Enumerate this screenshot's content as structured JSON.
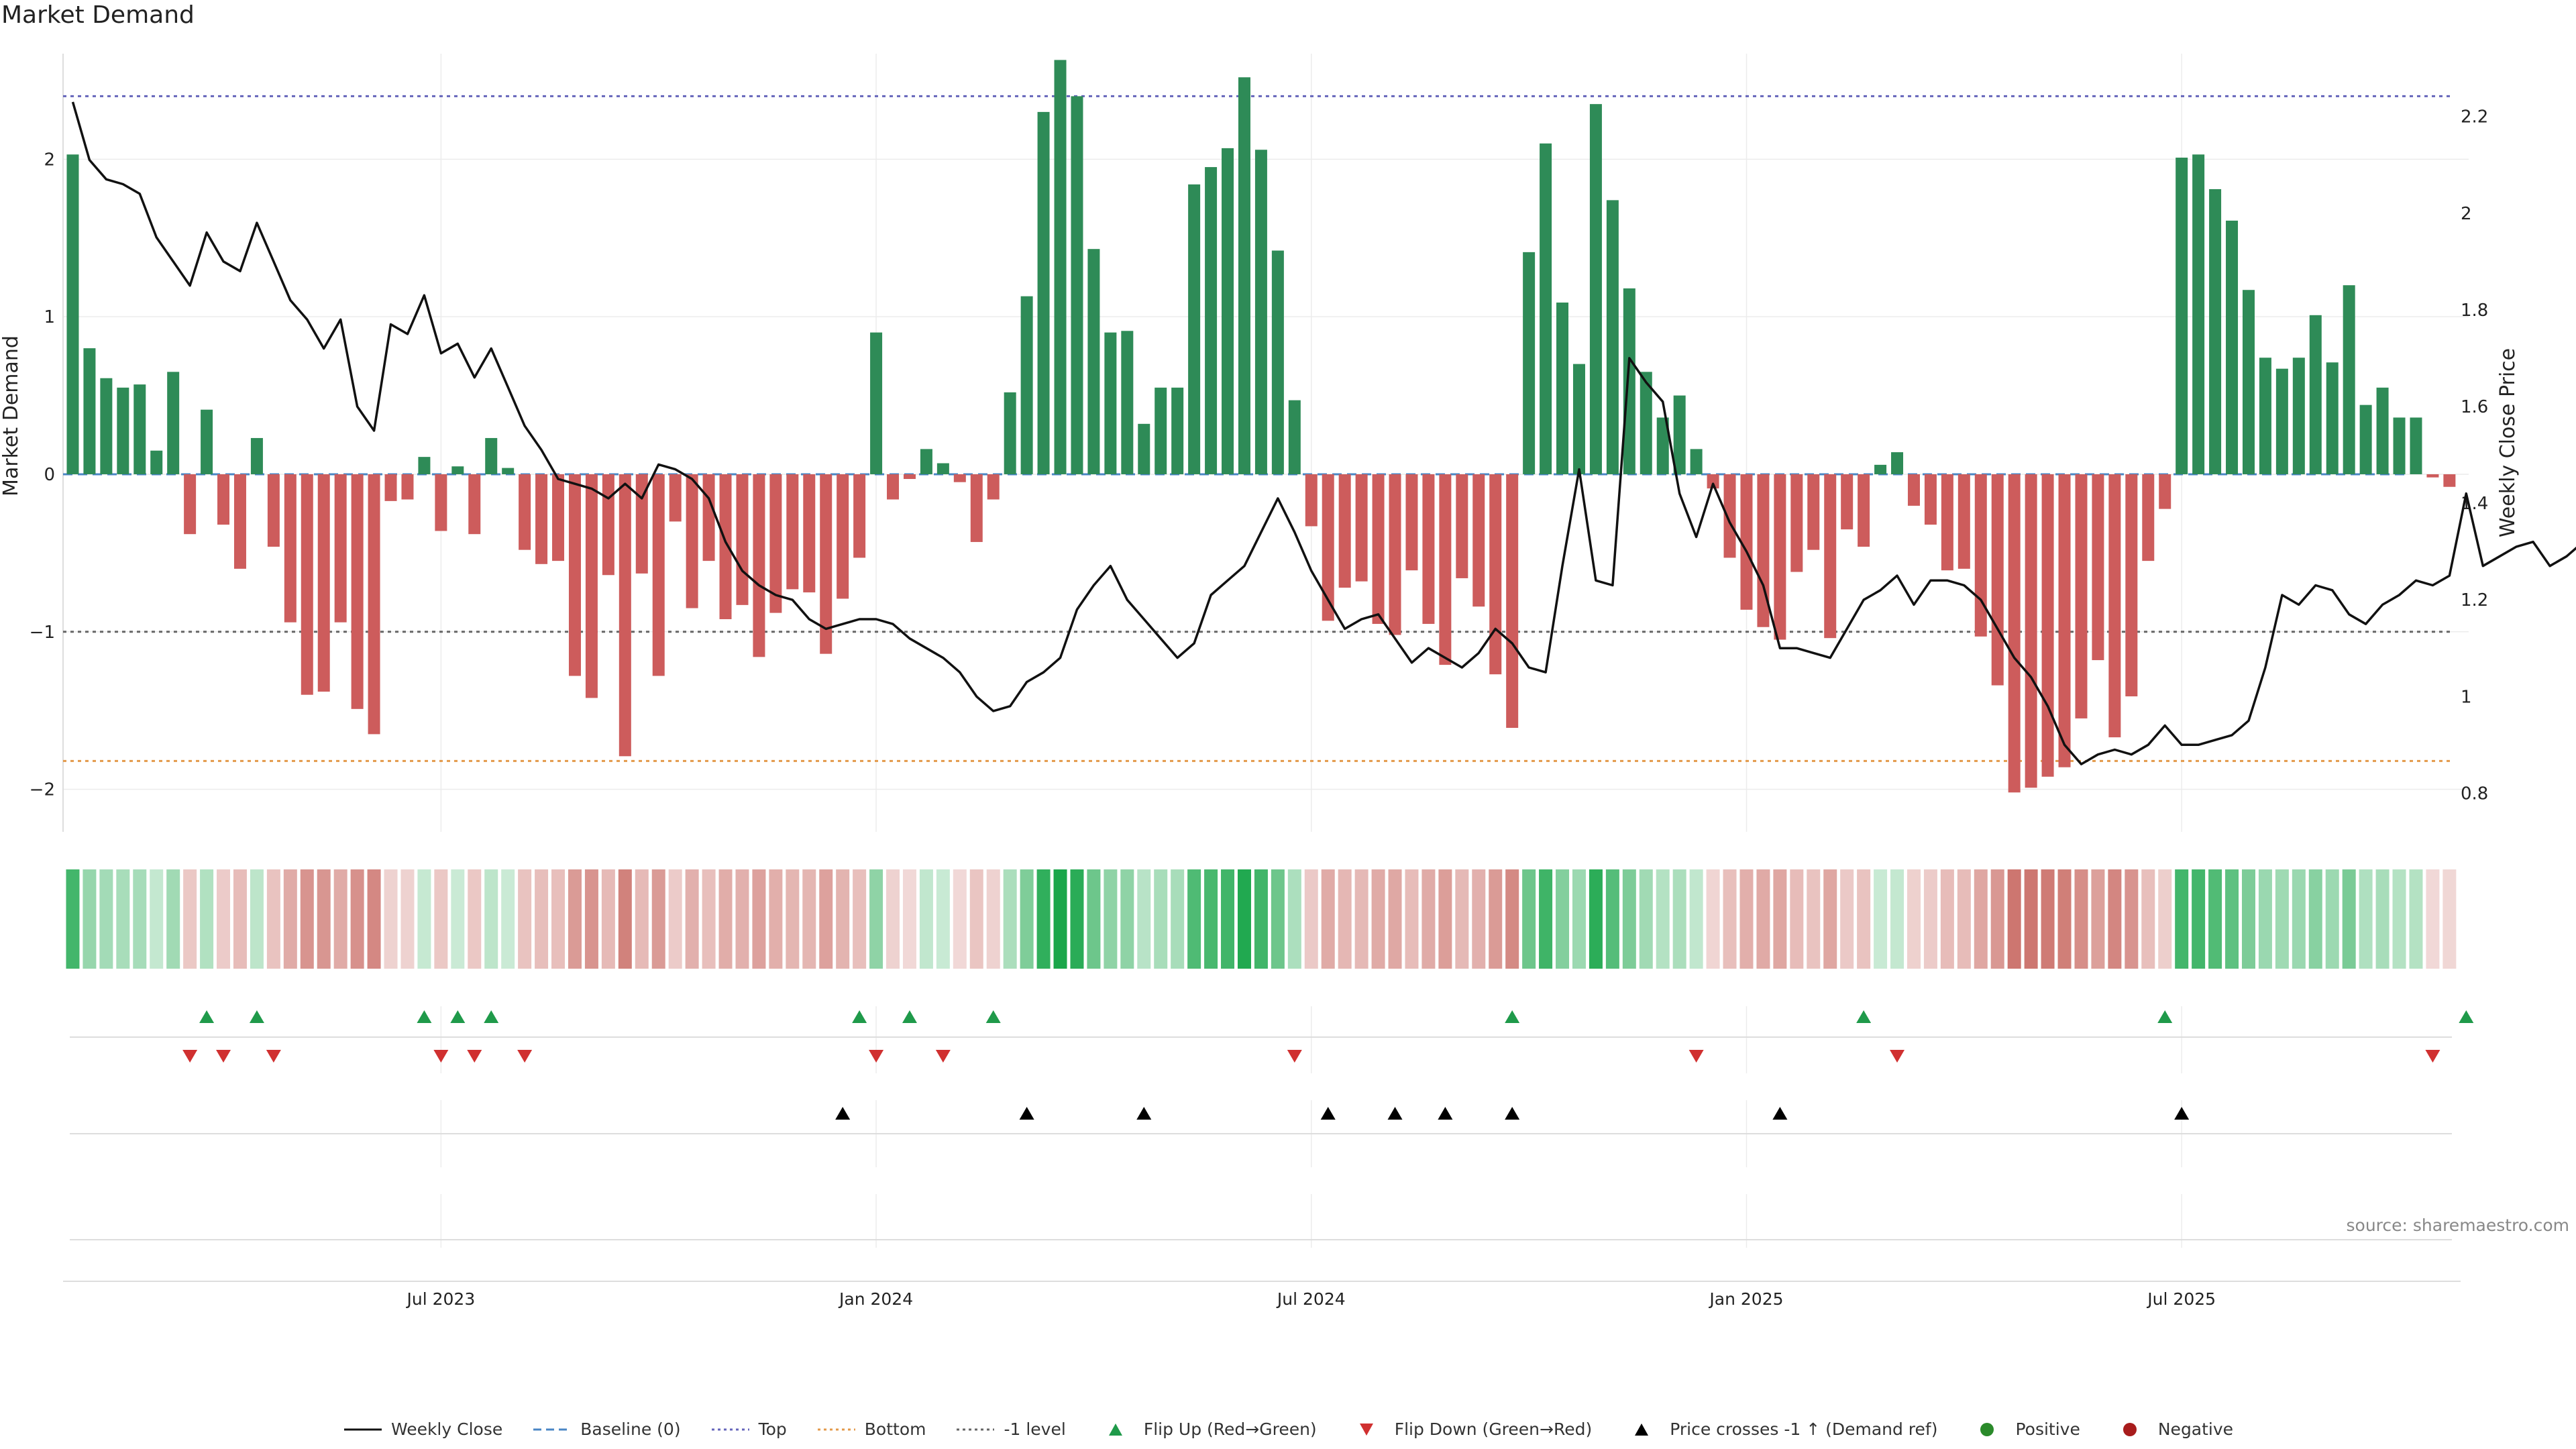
{
  "chart_data": {
    "type": "bar",
    "title": "Market Demand",
    "ylabel": "Market Demand",
    "y2label": "Weekly Close Price",
    "ylim": [
      -2.27,
      2.67
    ],
    "y2lim": [
      0.72,
      2.33
    ],
    "yticks": [
      2,
      1,
      0,
      -1,
      -2
    ],
    "ytick_labels": [
      "2",
      "1",
      "0",
      "−1",
      "−2"
    ],
    "y2ticks": [
      2.2,
      2.0,
      1.8,
      1.6,
      1.4,
      1.2,
      1.0,
      0.8
    ],
    "y2tick_labels": [
      "2.2",
      "2",
      "1.8",
      "1.6",
      "1.4",
      "1.2",
      "1",
      "0.8"
    ],
    "x_ticks": [
      {
        "week": 22,
        "label": "Jul 2023"
      },
      {
        "week": 48,
        "label": "Jan 2024"
      },
      {
        "week": 74,
        "label": "Jul 2024"
      },
      {
        "week": 100,
        "label": "Jan 2025"
      },
      {
        "week": 126,
        "label": "Jul 2025"
      }
    ],
    "reference_lines": [
      {
        "name": "Top",
        "value": 2.4,
        "color": "#6666bb"
      },
      {
        "name": "Bottom",
        "value": -1.82,
        "color": "#e39a4b"
      },
      {
        "name": "-1 level",
        "value": -1.0,
        "color": "#666666"
      },
      {
        "name": "Baseline (0)",
        "value": 0,
        "color": "#4a86c5"
      }
    ],
    "demand": [
      2.03,
      0.8,
      0.61,
      0.55,
      0.57,
      0.15,
      0.65,
      -0.38,
      0.41,
      -0.32,
      -0.6,
      0.23,
      -0.46,
      -0.94,
      -1.4,
      -1.38,
      -0.94,
      -1.49,
      -1.65,
      -0.17,
      -0.16,
      0.11,
      -0.36,
      0.05,
      -0.38,
      0.23,
      0.04,
      -0.48,
      -0.57,
      -0.55,
      -1.28,
      -1.42,
      -0.64,
      -1.79,
      -0.63,
      -1.28,
      -0.3,
      -0.85,
      -0.55,
      -0.92,
      -0.83,
      -1.16,
      -0.88,
      -0.73,
      -0.75,
      -1.14,
      -0.79,
      -0.53,
      0.9,
      -0.16,
      -0.03,
      0.16,
      0.07,
      -0.05,
      -0.43,
      -0.16,
      0.52,
      1.13,
      2.3,
      2.63,
      2.4,
      1.43,
      0.9,
      0.91,
      0.32,
      0.55,
      0.55,
      1.84,
      1.95,
      2.07,
      2.52,
      2.06,
      1.42,
      0.47,
      -0.33,
      -0.93,
      -0.72,
      -0.68,
      -0.95,
      -1.02,
      -0.61,
      -0.95,
      -1.21,
      -0.66,
      -0.84,
      -1.27,
      -1.61,
      1.41,
      2.1,
      1.09,
      0.7,
      2.35,
      1.74,
      1.18,
      0.65,
      0.36,
      0.5,
      0.16,
      -0.09,
      -0.53,
      -0.86,
      -0.97,
      -1.05,
      -0.62,
      -0.48,
      -1.04,
      -0.35,
      -0.46,
      0.06,
      0.14,
      -0.2,
      -0.32,
      -0.61,
      -0.6,
      -1.03,
      -1.34,
      -2.02,
      -1.99,
      -1.92,
      -1.86,
      -1.55,
      -1.18,
      -1.67,
      -1.41,
      -0.55,
      -0.22,
      2.01,
      2.03,
      1.81,
      1.61,
      1.17,
      0.74,
      0.67,
      0.74,
      1.01,
      0.71,
      1.2,
      0.44,
      0.55,
      0.36,
      0.36,
      -0.02,
      -0.08
    ],
    "price": [
      2.23,
      2.11,
      2.07,
      2.06,
      2.04,
      1.95,
      1.9,
      1.85,
      1.96,
      1.9,
      1.88,
      1.98,
      1.9,
      1.82,
      1.78,
      1.72,
      1.78,
      1.6,
      1.55,
      1.77,
      1.75,
      1.83,
      1.71,
      1.73,
      1.66,
      1.72,
      1.64,
      1.56,
      1.51,
      1.45,
      1.44,
      1.43,
      1.41,
      1.44,
      1.41,
      1.48,
      1.47,
      1.45,
      1.41,
      1.32,
      1.26,
      1.23,
      1.21,
      1.2,
      1.16,
      1.14,
      1.15,
      1.16,
      1.16,
      1.15,
      1.12,
      1.1,
      1.08,
      1.05,
      1.0,
      0.97,
      0.98,
      1.03,
      1.05,
      1.08,
      1.18,
      1.23,
      1.27,
      1.2,
      1.16,
      1.12,
      1.08,
      1.11,
      1.21,
      1.24,
      1.27,
      1.34,
      1.41,
      1.34,
      1.26,
      1.2,
      1.14,
      1.16,
      1.17,
      1.12,
      1.07,
      1.1,
      1.08,
      1.06,
      1.09,
      1.14,
      1.11,
      1.06,
      1.05,
      1.27,
      1.47,
      1.24,
      1.23,
      1.7,
      1.65,
      1.61,
      1.42,
      1.33,
      1.44,
      1.36,
      1.3,
      1.23,
      1.1,
      1.1,
      1.09,
      1.08,
      1.14,
      1.2,
      1.22,
      1.25,
      1.19,
      1.24,
      1.24,
      1.23,
      1.2,
      1.14,
      1.08,
      1.04,
      0.98,
      0.9,
      0.86,
      0.88,
      0.89,
      0.88,
      0.9,
      0.94,
      0.9,
      0.9,
      0.91,
      0.92,
      0.95,
      1.06,
      1.21,
      1.19,
      1.23,
      1.22,
      1.17,
      1.15,
      1.19,
      1.21,
      1.24,
      1.23,
      1.25,
      1.42,
      1.27,
      1.29,
      1.31,
      1.32,
      1.27,
      1.29,
      1.32
    ],
    "flip_up_weeks": [
      8,
      11,
      21,
      23,
      25,
      47,
      50,
      55,
      86,
      107,
      125,
      143
    ],
    "flip_down_weeks": [
      7,
      9,
      12,
      22,
      24,
      27,
      48,
      52,
      73,
      97,
      109,
      141
    ],
    "price_cross_weeks": [
      46,
      57,
      64,
      75,
      79,
      82,
      86,
      102,
      126
    ],
    "legend": [
      {
        "key": "line",
        "label": "Weekly Close",
        "color": "#111111"
      },
      {
        "key": "dash",
        "label": "Baseline (0)",
        "color": "#4a86c5"
      },
      {
        "key": "dot",
        "label": "Top",
        "color": "#6666bb"
      },
      {
        "key": "dot",
        "label": "Bottom",
        "color": "#e39a4b"
      },
      {
        "key": "dot",
        "label": "-1 level",
        "color": "#666666"
      },
      {
        "key": "tri-up",
        "label": "Flip Up (Red→Green)",
        "color": "#1f9a4a"
      },
      {
        "key": "tri-down",
        "label": "Flip Down (Green→Red)",
        "color": "#d03030"
      },
      {
        "key": "tri-up",
        "label": "Price crosses -1 ↑ (Demand ref)",
        "color": "#000000"
      },
      {
        "key": "circle",
        "label": "Positive",
        "color": "#2a8a2a"
      },
      {
        "key": "circle",
        "label": "Negative",
        "color": "#a81c1c"
      }
    ],
    "source": "source: sharemaestro.com"
  },
  "colors": {
    "positive_bar": "#2e8b57",
    "negative_bar": "#cd5c5c",
    "price_line": "#111111",
    "heat_positive": "#1aa64a",
    "heat_negative": "#c25850"
  }
}
